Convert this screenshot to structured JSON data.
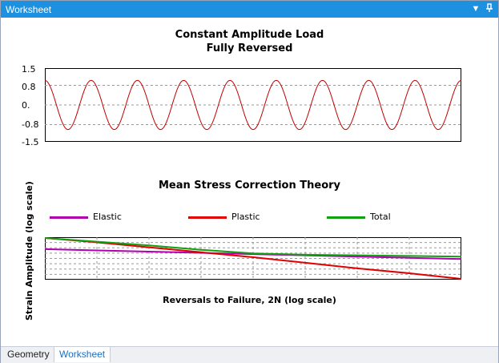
{
  "window": {
    "title": "Worksheet",
    "dropdown_glyph": "▼",
    "pin_glyph": "⊣",
    "title_bar_color": "#1e90e0"
  },
  "load_chart": {
    "title_line1": "Constant Amplitude Load",
    "title_line2": "Fully Reversed",
    "yticks": [
      "1.5",
      "0.8",
      "0.",
      "-0.8",
      "-1.5"
    ]
  },
  "correction_chart": {
    "title": "Mean Stress Correction Theory",
    "legend": [
      {
        "label": "Elastic",
        "color": "#b000b0"
      },
      {
        "label": "Plastic",
        "color": "#e00000"
      },
      {
        "label": "Total",
        "color": "#10a010"
      }
    ],
    "xlabel": "Reversals to Failure, 2N (log scale)",
    "ylabel": "Strain Amplitude (log scale)"
  },
  "tabs": [
    {
      "label": "Geometry",
      "active": false
    },
    {
      "label": "Worksheet",
      "active": true
    }
  ],
  "chart_data": [
    {
      "type": "line",
      "title": "Constant Amplitude Load\nFully Reversed",
      "xlabel": "",
      "ylabel": "",
      "ylim": [
        -1.5,
        1.5
      ],
      "yticks": [
        1.5,
        0.8,
        0,
        -0.8,
        -1.5
      ],
      "grid": true,
      "series": [
        {
          "color": "#c00000",
          "function": "sine",
          "amplitude": 1,
          "cycles": 9
        }
      ]
    },
    {
      "type": "line",
      "title": "Mean Stress Correction Theory",
      "xlabel": "Reversals to Failure, 2N (log scale)",
      "ylabel": "Strain Amplitude (log scale)",
      "grid": true,
      "legend_position": "top",
      "x": [
        0,
        1,
        2,
        3,
        4,
        5,
        6,
        7,
        8
      ],
      "series": [
        {
          "name": "Elastic",
          "color": "#b000b0",
          "values": [
            0.82,
            0.8,
            0.78,
            0.76,
            0.74,
            0.72,
            0.7,
            0.68,
            0.66
          ]
        },
        {
          "name": "Plastic",
          "color": "#e00000",
          "values": [
            1.0,
            0.93,
            0.85,
            0.77,
            0.69,
            0.6,
            0.51,
            0.43,
            0.34
          ]
        },
        {
          "name": "Total",
          "color": "#10a010",
          "values": [
            1.0,
            0.94,
            0.88,
            0.81,
            0.75,
            0.73,
            0.72,
            0.71,
            0.7
          ]
        }
      ]
    }
  ]
}
